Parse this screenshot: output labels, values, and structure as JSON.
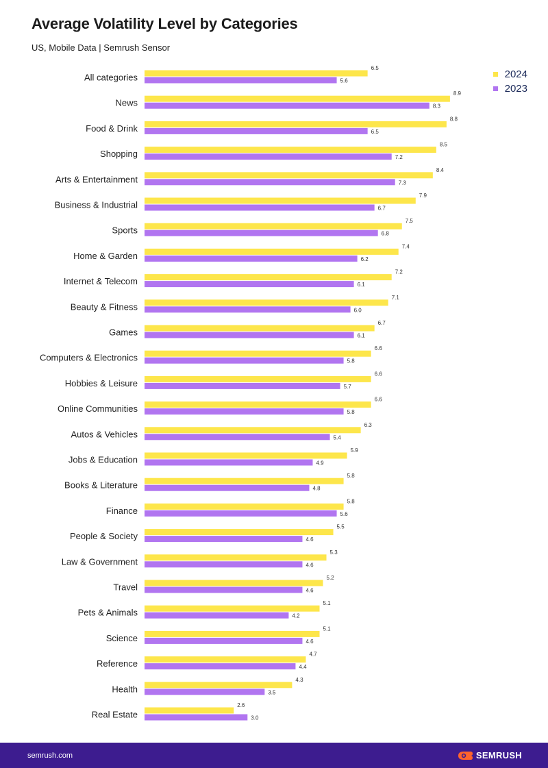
{
  "header": {
    "title": "Average Volatility Level by Categories",
    "subtitle": "US, Mobile Data | Semrush Sensor"
  },
  "colors": {
    "y2024": "#fde64b",
    "y2023": "#b175f0",
    "footer": "#3d1c8f",
    "brand_accent": "#ff642d"
  },
  "chart_data": {
    "type": "bar",
    "orientation": "horizontal",
    "categories": [
      "All categories",
      "News",
      "Food & Drink",
      "Shopping",
      "Arts & Entertainment",
      "Business & Industrial",
      "Sports",
      "Home & Garden",
      "Internet & Telecom",
      "Beauty & Fitness",
      "Games",
      "Computers & Electronics",
      "Hobbies & Leisure",
      "Online Communities",
      "Autos & Vehicles",
      "Jobs & Education",
      "Books & Literature",
      "Finance",
      "People & Society",
      "Law & Government",
      "Travel",
      "Pets & Animals",
      "Science",
      "Reference",
      "Health",
      "Real Estate"
    ],
    "series": [
      {
        "name": "2024",
        "values": [
          6.5,
          8.9,
          8.8,
          8.5,
          8.4,
          7.9,
          7.5,
          7.4,
          7.2,
          7.1,
          6.7,
          6.6,
          6.6,
          6.6,
          6.3,
          5.9,
          5.8,
          5.8,
          5.5,
          5.3,
          5.2,
          5.1,
          5.1,
          4.7,
          4.3,
          2.6
        ]
      },
      {
        "name": "2023",
        "values": [
          5.6,
          8.3,
          6.5,
          7.2,
          7.3,
          6.7,
          6.8,
          6.2,
          6.1,
          6.0,
          6.1,
          5.8,
          5.7,
          5.8,
          5.4,
          4.9,
          4.8,
          5.6,
          4.6,
          4.6,
          4.6,
          4.2,
          4.6,
          4.4,
          3.5,
          3.0
        ]
      }
    ],
    "legend_position": "top-right",
    "grid": false
  },
  "footer": {
    "site": "semrush.com",
    "brand": "SEMRUSH"
  }
}
